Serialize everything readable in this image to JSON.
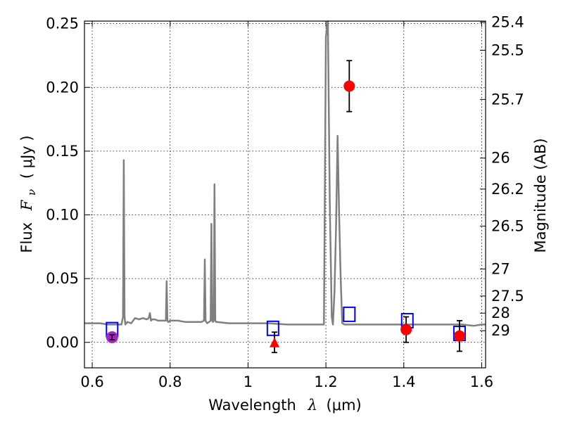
{
  "chart_data": {
    "type": "scatter",
    "xlabel": "Wavelength",
    "xlabel_symbol": "λ",
    "xlabel_unit": "(μm)",
    "ylabel": "Flux",
    "ylabel_symbol": "F",
    "ylabel_subscript": "ν",
    "ylabel_unit": "( μJy )",
    "y2label": "Magnitude (AB)",
    "xlim": [
      0.58,
      1.61
    ],
    "ylim": [
      -0.02,
      0.252
    ],
    "grid": true,
    "x_ticks": [
      {
        "value": 0.6,
        "label": "0.6"
      },
      {
        "value": 0.8,
        "label": "0.8"
      },
      {
        "value": 1.0,
        "label": "1"
      },
      {
        "value": 1.2,
        "label": "1.2"
      },
      {
        "value": 1.4,
        "label": "1.4"
      },
      {
        "value": 1.6,
        "label": "1.6"
      }
    ],
    "y_ticks": [
      {
        "value": 0.0,
        "label": "0.00"
      },
      {
        "value": 0.05,
        "label": "0.05"
      },
      {
        "value": 0.1,
        "label": "0.10"
      },
      {
        "value": 0.15,
        "label": "0.15"
      },
      {
        "value": 0.2,
        "label": "0.20"
      },
      {
        "value": 0.25,
        "label": "0.25"
      }
    ],
    "y2_ticks": [
      {
        "mag": 25.4,
        "label": "25.4"
      },
      {
        "mag": 25.5,
        "label": "25.5"
      },
      {
        "mag": 25.7,
        "label": "25.7"
      },
      {
        "mag": 26,
        "label": "26"
      },
      {
        "mag": 26.2,
        "label": "26.2"
      },
      {
        "mag": 26.5,
        "label": "26.5"
      },
      {
        "mag": 27,
        "label": "27"
      },
      {
        "mag": 27.5,
        "label": "27.5"
      },
      {
        "mag": 28,
        "label": "28"
      },
      {
        "mag": 29,
        "label": "29"
      }
    ],
    "model_spectrum": {
      "color": "#808080",
      "x": [
        0.58,
        0.6,
        0.62,
        0.64,
        0.66,
        0.675,
        0.679,
        0.681,
        0.683,
        0.685,
        0.69,
        0.7,
        0.71,
        0.72,
        0.73,
        0.74,
        0.745,
        0.748,
        0.751,
        0.754,
        0.76,
        0.77,
        0.78,
        0.789,
        0.791,
        0.793,
        0.795,
        0.8,
        0.82,
        0.84,
        0.86,
        0.88,
        0.887,
        0.889,
        0.891,
        0.893,
        0.895,
        0.9,
        0.904,
        0.906,
        0.908,
        0.91,
        0.912,
        0.914,
        0.916,
        0.918,
        0.92,
        0.95,
        1.0,
        1.05,
        1.1,
        1.15,
        1.18,
        1.195,
        1.2,
        1.205,
        1.21,
        1.215,
        1.218,
        1.222,
        1.226,
        1.23,
        1.234,
        1.238,
        1.242,
        1.248,
        1.25,
        1.3,
        1.35,
        1.4,
        1.45,
        1.5,
        1.55,
        1.58,
        1.6,
        1.61
      ],
      "y": [
        0.015,
        0.015,
        0.015,
        0.014,
        0.014,
        0.014,
        0.02,
        0.143,
        0.02,
        0.014,
        0.016,
        0.015,
        0.019,
        0.018,
        0.019,
        0.018,
        0.019,
        0.023,
        0.017,
        0.018,
        0.018,
        0.017,
        0.017,
        0.017,
        0.048,
        0.017,
        0.016,
        0.017,
        0.017,
        0.016,
        0.016,
        0.016,
        0.017,
        0.065,
        0.017,
        0.016,
        0.015,
        0.016,
        0.017,
        0.093,
        0.017,
        0.016,
        0.017,
        0.124,
        0.017,
        0.016,
        0.016,
        0.015,
        0.015,
        0.015,
        0.014,
        0.014,
        0.014,
        0.014,
        0.24,
        0.252,
        0.11,
        0.02,
        0.014,
        0.04,
        0.09,
        0.162,
        0.1,
        0.05,
        0.015,
        0.014,
        0.014,
        0.014,
        0.014,
        0.014,
        0.014,
        0.014,
        0.014,
        0.013,
        0.014,
        0.014
      ]
    },
    "model_photometry": {
      "marker": "open-square",
      "color": "#0000ff",
      "points": [
        {
          "x": 0.651,
          "y": 0.01
        },
        {
          "x": 1.064,
          "y": 0.011
        },
        {
          "x": 1.26,
          "y": 0.022
        },
        {
          "x": 1.409,
          "y": 0.017
        },
        {
          "x": 1.543,
          "y": 0.007
        }
      ]
    },
    "detections": {
      "marker": "filled-circle",
      "color": "#ff0000",
      "points": [
        {
          "x": 1.26,
          "y": 0.201,
          "err": 0.02
        },
        {
          "x": 1.406,
          "y": 0.01,
          "err": 0.01
        },
        {
          "x": 1.543,
          "y": 0.005,
          "err": 0.012
        }
      ]
    },
    "special_detection": {
      "marker": "filled-circle",
      "color": "#aa22cc",
      "points": [
        {
          "x": 0.651,
          "y": 0.004,
          "err": 0.002
        }
      ]
    },
    "upper_limits": {
      "marker": "filled-triangle",
      "color": "#ff0000",
      "points": [
        {
          "x": 1.068,
          "y": 0.0,
          "err": 0.008
        }
      ]
    }
  }
}
